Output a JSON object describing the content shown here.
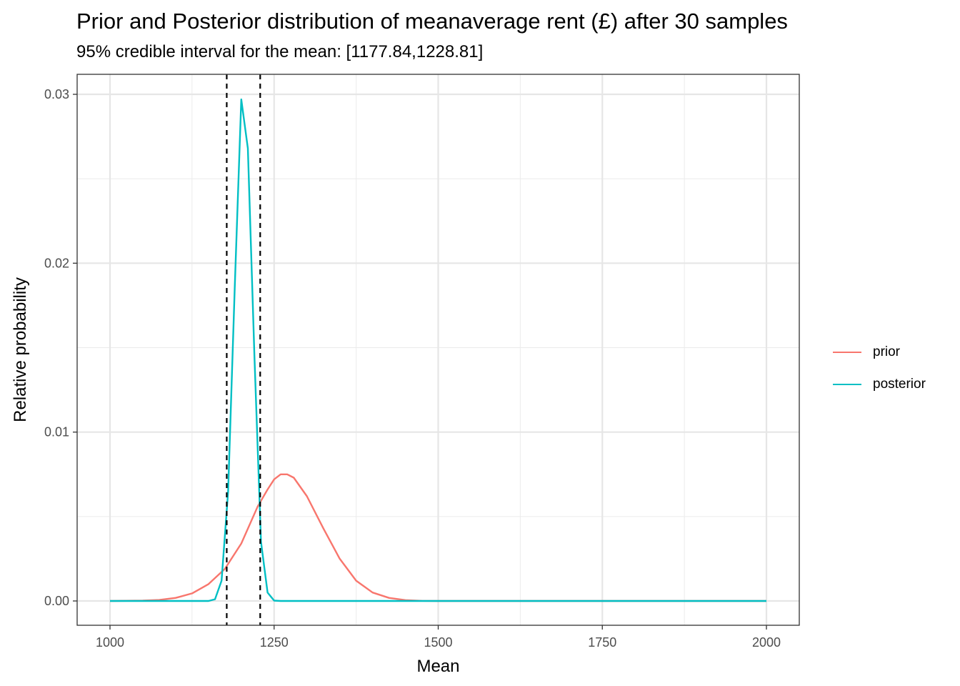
{
  "chart_data": {
    "type": "line",
    "title": "Prior and Posterior distribution of meanaverage rent (£) after 30 samples",
    "subtitle": "95% credible interval for the mean: [1177.84,1228.81]",
    "xlabel": "Mean",
    "ylabel": "Relative probability",
    "xlim": [
      1000,
      2000
    ],
    "ylim": [
      0,
      0.03
    ],
    "x_ticks": [
      1000,
      1250,
      1500,
      1750,
      2000
    ],
    "x_tick_labels": [
      "1000",
      "1250",
      "1500",
      "1750",
      "2000"
    ],
    "y_ticks": [
      0,
      0.01,
      0.02,
      0.03
    ],
    "y_tick_labels": [
      "0.00",
      "0.01",
      "0.02",
      "0.03"
    ],
    "grid": true,
    "legend_position": "right",
    "credible_interval": [
      1177.84,
      1228.81
    ],
    "series": [
      {
        "name": "prior",
        "color": "#F8766D",
        "x": [
          1000,
          1050,
          1075,
          1100,
          1125,
          1150,
          1175,
          1200,
          1225,
          1240,
          1250,
          1260,
          1265,
          1270,
          1280,
          1300,
          1325,
          1350,
          1375,
          1400,
          1425,
          1450,
          1475,
          1500,
          1750,
          2000
        ],
        "y": [
          0,
          2e-05,
          6e-05,
          0.00018,
          0.00045,
          0.001,
          0.0019,
          0.0034,
          0.0056,
          0.0066,
          0.0072,
          0.0075,
          0.0075,
          0.0075,
          0.0073,
          0.0062,
          0.0043,
          0.0025,
          0.0012,
          0.0005,
          0.00018,
          5e-05,
          1e-05,
          0,
          0,
          0
        ]
      },
      {
        "name": "posterior",
        "color": "#00BFC4",
        "x": [
          1000,
          1150,
          1160,
          1170,
          1180,
          1190,
          1200,
          1210,
          1220,
          1230,
          1240,
          1250,
          1260,
          1500,
          2000
        ],
        "y": [
          0,
          0,
          0.0001,
          0.0012,
          0.0065,
          0.0185,
          0.0297,
          0.0268,
          0.0145,
          0.0035,
          0.0005,
          2e-05,
          0,
          0,
          0
        ]
      }
    ]
  }
}
